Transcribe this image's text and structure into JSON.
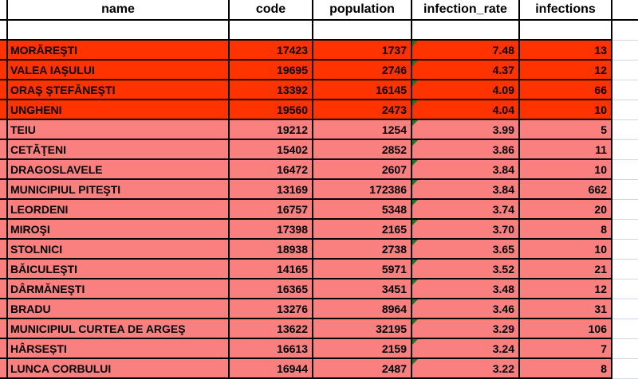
{
  "sheet": {
    "headers": [
      "name",
      "code",
      "population",
      "infection_rate",
      "infections"
    ],
    "rows": [
      {
        "name": "MORĂREŞTI",
        "code": "17423",
        "population": "1737",
        "infection_rate": "7.48",
        "infections": "13",
        "tier": "high"
      },
      {
        "name": "VALEA IAŞULUI",
        "code": "19695",
        "population": "2746",
        "infection_rate": "4.37",
        "infections": "12",
        "tier": "high"
      },
      {
        "name": "ORAŞ ŞTEFĂNEŞTI",
        "code": "13392",
        "population": "16145",
        "infection_rate": "4.09",
        "infections": "66",
        "tier": "high"
      },
      {
        "name": "UNGHENI",
        "code": "19560",
        "population": "2473",
        "infection_rate": "4.04",
        "infections": "10",
        "tier": "high"
      },
      {
        "name": "TEIU",
        "code": "19212",
        "population": "1254",
        "infection_rate": "3.99",
        "infections": "5",
        "tier": "mid"
      },
      {
        "name": "CETĂŢENI",
        "code": "15402",
        "population": "2852",
        "infection_rate": "3.86",
        "infections": "11",
        "tier": "mid"
      },
      {
        "name": "DRAGOSLAVELE",
        "code": "16472",
        "population": "2607",
        "infection_rate": "3.84",
        "infections": "10",
        "tier": "mid"
      },
      {
        "name": "MUNICIPIUL PITEŞTI",
        "code": "13169",
        "population": "172386",
        "infection_rate": "3.84",
        "infections": "662",
        "tier": "mid"
      },
      {
        "name": "LEORDENI",
        "code": "16757",
        "population": "5348",
        "infection_rate": "3.74",
        "infections": "20",
        "tier": "mid"
      },
      {
        "name": "MIROŞI",
        "code": "17398",
        "population": "2165",
        "infection_rate": "3.70",
        "infections": "8",
        "tier": "mid"
      },
      {
        "name": "STOLNICI",
        "code": "18938",
        "population": "2738",
        "infection_rate": "3.65",
        "infections": "10",
        "tier": "mid"
      },
      {
        "name": "BĂICULEŞTI",
        "code": "14165",
        "population": "5971",
        "infection_rate": "3.52",
        "infections": "21",
        "tier": "mid"
      },
      {
        "name": "DÂRMĂNEŞTI",
        "code": "16365",
        "population": "3451",
        "infection_rate": "3.48",
        "infections": "12",
        "tier": "mid"
      },
      {
        "name": "BRADU",
        "code": "13276",
        "population": "8964",
        "infection_rate": "3.46",
        "infections": "31",
        "tier": "mid"
      },
      {
        "name": "MUNICIPIUL CURTEA DE ARGEŞ",
        "code": "13622",
        "population": "32195",
        "infection_rate": "3.29",
        "infections": "106",
        "tier": "mid"
      },
      {
        "name": "HÂRSEȘTI",
        "code": "16613",
        "population": "2159",
        "infection_rate": "3.24",
        "infections": "7",
        "tier": "mid"
      },
      {
        "name": "LUNCA CORBULUI",
        "code": "16944",
        "population": "2487",
        "infection_rate": "3.22",
        "infections": "8",
        "tier": "mid"
      }
    ]
  },
  "colors": {
    "high": "#FF3300",
    "mid": "#FA8080",
    "border": "#000000",
    "gridline": "#CFD8E8",
    "indicator": "#1F7A1F"
  }
}
